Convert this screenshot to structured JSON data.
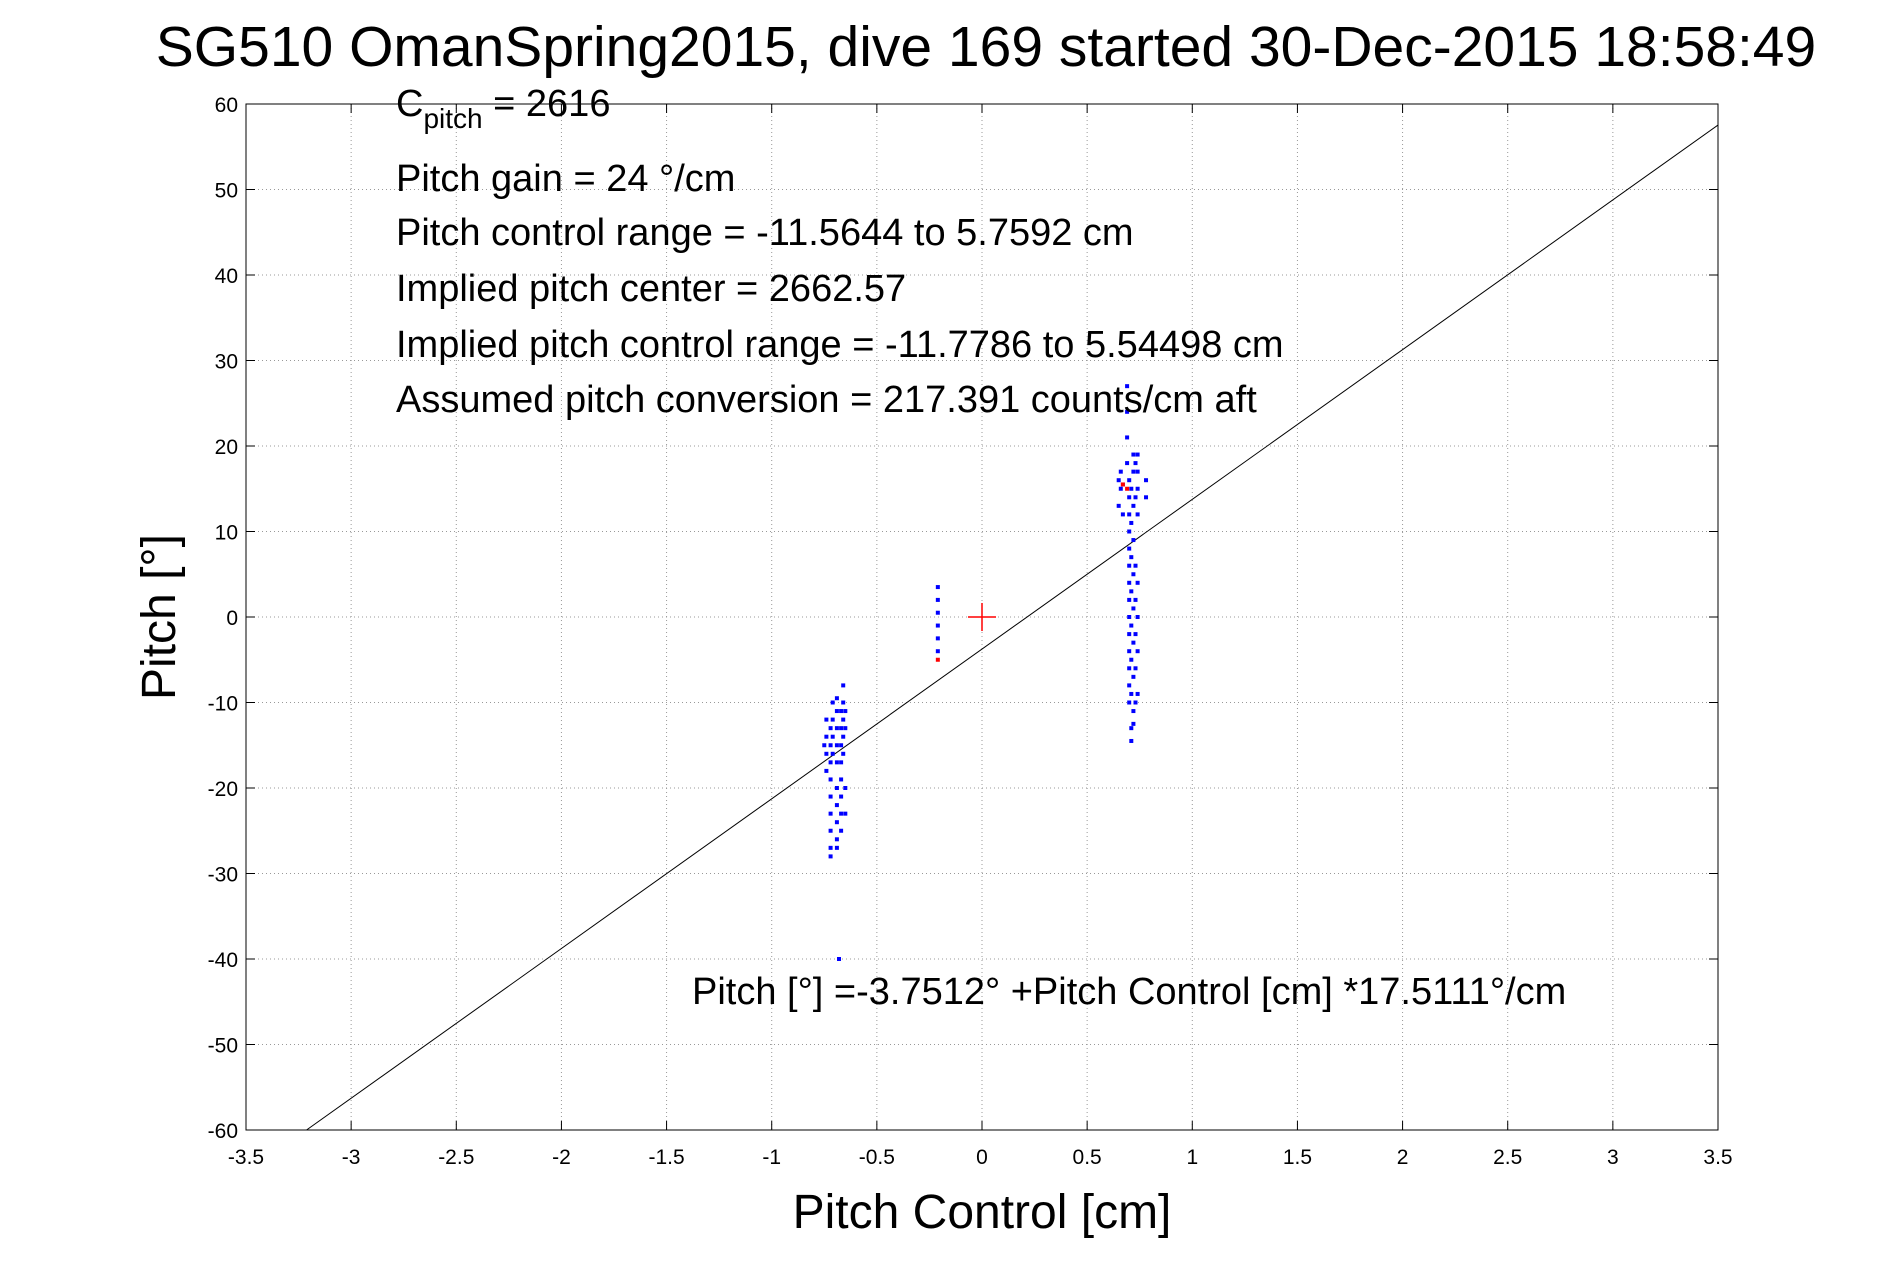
{
  "chart_data": {
    "type": "scatter",
    "title": "SG510 OmanSpring2015, dive 169 started 30-Dec-2015 18:58:49",
    "xlabel": "Pitch Control [cm]",
    "ylabel": "Pitch [°]",
    "xlim": [
      -3.5,
      3.5
    ],
    "ylim": [
      -60,
      60
    ],
    "xticks": [
      -3.5,
      -3,
      -2.5,
      -2,
      -1.5,
      -1,
      -0.5,
      0,
      0.5,
      1,
      1.5,
      2,
      2.5,
      3,
      3.5
    ],
    "yticks": [
      -60,
      -50,
      -40,
      -30,
      -20,
      -10,
      0,
      10,
      20,
      30,
      40,
      50,
      60
    ],
    "xtick_labels": [
      "-3.5",
      "-3",
      "-2.5",
      "-2",
      "-1.5",
      "-1",
      "-0.5",
      "0",
      "0.5",
      "1",
      "1.5",
      "2",
      "2.5",
      "3",
      "3.5"
    ],
    "ytick_labels": [
      "-60",
      "-50",
      "-40",
      "-30",
      "-20",
      "-10",
      "0",
      "10",
      "20",
      "30",
      "40",
      "50",
      "60"
    ],
    "grid": true,
    "annotations": {
      "c_pitch_main": "C",
      "c_pitch_sub": "pitch",
      "c_pitch_value": " = 2616",
      "pitch_gain": "Pitch gain = 24 °/cm",
      "pitch_control_range": "Pitch control range = -11.5644 to 5.7592 cm",
      "implied_center": "Implied pitch center = 2662.57",
      "implied_range": "Implied pitch control range = -11.7786 to 5.54498 cm",
      "assumed_conversion": "Assumed pitch conversion = 217.391 counts/cm aft",
      "fit_equation": "Pitch [°] =-3.7512° +Pitch Control [cm] *17.5111°/cm"
    },
    "fit_line": {
      "intercept": -3.7512,
      "slope": 17.5111,
      "color": "#000000"
    },
    "center_marker": {
      "x": 0,
      "y": 0,
      "color": "#ff0000"
    },
    "series": [
      {
        "color": "#0000ff",
        "points": [
          [
            -0.72,
            -13
          ],
          [
            -0.72,
            -15
          ],
          [
            -0.72,
            -17
          ],
          [
            -0.72,
            -19
          ],
          [
            -0.72,
            -21
          ],
          [
            -0.72,
            -23
          ],
          [
            -0.72,
            -25
          ],
          [
            -0.72,
            -27
          ],
          [
            -0.72,
            -28
          ],
          [
            -0.74,
            -12
          ],
          [
            -0.74,
            -14
          ],
          [
            -0.74,
            -16
          ],
          [
            -0.74,
            -18
          ],
          [
            -0.75,
            -15
          ],
          [
            -0.71,
            -10
          ],
          [
            -0.71,
            -12
          ],
          [
            -0.71,
            -14
          ],
          [
            -0.71,
            -16
          ],
          [
            -0.69,
            -9.5
          ],
          [
            -0.69,
            -11
          ],
          [
            -0.69,
            -13
          ],
          [
            -0.69,
            -15
          ],
          [
            -0.69,
            -17
          ],
          [
            -0.69,
            -20
          ],
          [
            -0.69,
            -22
          ],
          [
            -0.69,
            -24
          ],
          [
            -0.69,
            -26
          ],
          [
            -0.69,
            -27
          ],
          [
            -0.67,
            -11
          ],
          [
            -0.67,
            -13
          ],
          [
            -0.67,
            -15
          ],
          [
            -0.67,
            -17
          ],
          [
            -0.67,
            -19
          ],
          [
            -0.67,
            -21
          ],
          [
            -0.67,
            -23
          ],
          [
            -0.67,
            -25
          ],
          [
            -0.66,
            -8
          ],
          [
            -0.66,
            -10
          ],
          [
            -0.66,
            -12
          ],
          [
            -0.66,
            -14
          ],
          [
            -0.66,
            -16
          ],
          [
            -0.65,
            -11
          ],
          [
            -0.65,
            -13
          ],
          [
            -0.65,
            -20
          ],
          [
            -0.65,
            -23
          ],
          [
            -0.68,
            -40
          ],
          [
            -0.21,
            3.5
          ],
          [
            -0.21,
            2
          ],
          [
            -0.21,
            0.5
          ],
          [
            -0.21,
            -1
          ],
          [
            -0.21,
            -2.5
          ],
          [
            -0.21,
            -4
          ],
          [
            0.65,
            16
          ],
          [
            0.65,
            13
          ],
          [
            0.66,
            17
          ],
          [
            0.66,
            15
          ],
          [
            0.67,
            12
          ],
          [
            0.67,
            15.5
          ],
          [
            0.69,
            27
          ],
          [
            0.69,
            24
          ],
          [
            0.69,
            21
          ],
          [
            0.69,
            18
          ],
          [
            0.7,
            16
          ],
          [
            0.7,
            14
          ],
          [
            0.7,
            12
          ],
          [
            0.7,
            10
          ],
          [
            0.7,
            8
          ],
          [
            0.7,
            6
          ],
          [
            0.7,
            4
          ],
          [
            0.7,
            2
          ],
          [
            0.7,
            0
          ],
          [
            0.7,
            -2
          ],
          [
            0.7,
            -4
          ],
          [
            0.7,
            -6
          ],
          [
            0.7,
            -8
          ],
          [
            0.7,
            -10
          ],
          [
            0.71,
            15
          ],
          [
            0.71,
            11
          ],
          [
            0.71,
            7
          ],
          [
            0.71,
            3
          ],
          [
            0.71,
            -1
          ],
          [
            0.71,
            -5
          ],
          [
            0.71,
            -9
          ],
          [
            0.71,
            -13
          ],
          [
            0.71,
            -14.5
          ],
          [
            0.72,
            19
          ],
          [
            0.72,
            17
          ],
          [
            0.72,
            13
          ],
          [
            0.72,
            9
          ],
          [
            0.72,
            5
          ],
          [
            0.72,
            1
          ],
          [
            0.72,
            -3
          ],
          [
            0.72,
            -7
          ],
          [
            0.72,
            -11
          ],
          [
            0.72,
            -12.5
          ],
          [
            0.73,
            18
          ],
          [
            0.73,
            14
          ],
          [
            0.73,
            6
          ],
          [
            0.73,
            2
          ],
          [
            0.73,
            -2
          ],
          [
            0.73,
            -6
          ],
          [
            0.73,
            -10
          ],
          [
            0.74,
            19
          ],
          [
            0.74,
            17
          ],
          [
            0.74,
            15
          ],
          [
            0.74,
            12
          ],
          [
            0.74,
            4
          ],
          [
            0.74,
            0
          ],
          [
            0.74,
            -4
          ],
          [
            0.74,
            -9
          ],
          [
            0.78,
            16
          ],
          [
            0.78,
            14
          ]
        ]
      },
      {
        "color": "#ff0000",
        "points": [
          [
            0.67,
            15.5
          ],
          [
            0.69,
            15
          ],
          [
            -0.21,
            -5
          ]
        ]
      }
    ]
  }
}
